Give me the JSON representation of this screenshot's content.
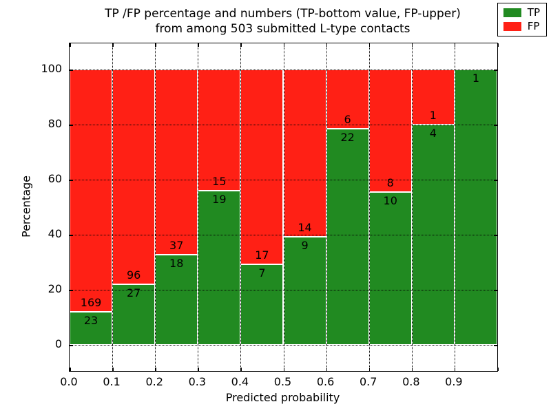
{
  "title": {
    "line1": "TP /FP percentage and numbers (TP-bottom value, FP-upper)",
    "line2": "from among 503 submitted L-type contacts"
  },
  "axes": {
    "xlabel": "Predicted probability",
    "ylabel": "Percentage",
    "x_tick_labels": [
      "0.0",
      "0.1",
      "0.2",
      "0.3",
      "0.4",
      "0.5",
      "0.6",
      "0.7",
      "0.8",
      "0.9"
    ],
    "y_tick_labels": [
      "0",
      "20",
      "40",
      "60",
      "80",
      "100"
    ]
  },
  "legend": {
    "items": [
      {
        "label": "TP",
        "color": "#218a21"
      },
      {
        "label": "FP",
        "color": "#ff2015"
      }
    ]
  },
  "colors": {
    "tp_green": "#218a21",
    "fp_red": "#ff2015",
    "background": "#ffffff",
    "grid": "#000000"
  },
  "chart_data": {
    "type": "bar",
    "stacked": true,
    "normalized": "each bar scaled to 100%",
    "title": "TP /FP percentage and numbers (TP-bottom value, FP-upper) from among 503 submitted L-type contacts",
    "xlabel": "Predicted probability",
    "ylabel": "Percentage",
    "total_contacts": 503,
    "bin_edges": [
      0.0,
      0.1,
      0.2,
      0.3,
      0.4,
      0.5,
      0.6,
      0.7,
      0.8,
      0.9,
      1.0
    ],
    "categories": [
      "0.0-0.1",
      "0.1-0.2",
      "0.2-0.3",
      "0.3-0.4",
      "0.4-0.5",
      "0.5-0.6",
      "0.6-0.7",
      "0.7-0.8",
      "0.8-0.9",
      "0.9-1.0"
    ],
    "series": [
      {
        "name": "TP",
        "values": [
          23,
          27,
          18,
          19,
          7,
          9,
          22,
          10,
          4,
          1
        ]
      },
      {
        "name": "FP",
        "values": [
          169,
          96,
          37,
          15,
          17,
          14,
          6,
          8,
          1,
          0
        ]
      }
    ],
    "tp_percent_of_bar": [
      12.0,
      22.0,
      32.7,
      55.9,
      29.2,
      39.1,
      78.6,
      55.6,
      80.0,
      100.0
    ],
    "xlim": [
      0.0,
      1.0
    ],
    "ylim": [
      -9.5,
      109.5
    ],
    "y_gridlines": [
      0,
      20,
      40,
      60,
      80,
      100
    ],
    "grid": "dotted, black, both axes",
    "legend_position": "upper right",
    "annotation_rule": "TP count printed just below green/red boundary, FP count just above"
  }
}
